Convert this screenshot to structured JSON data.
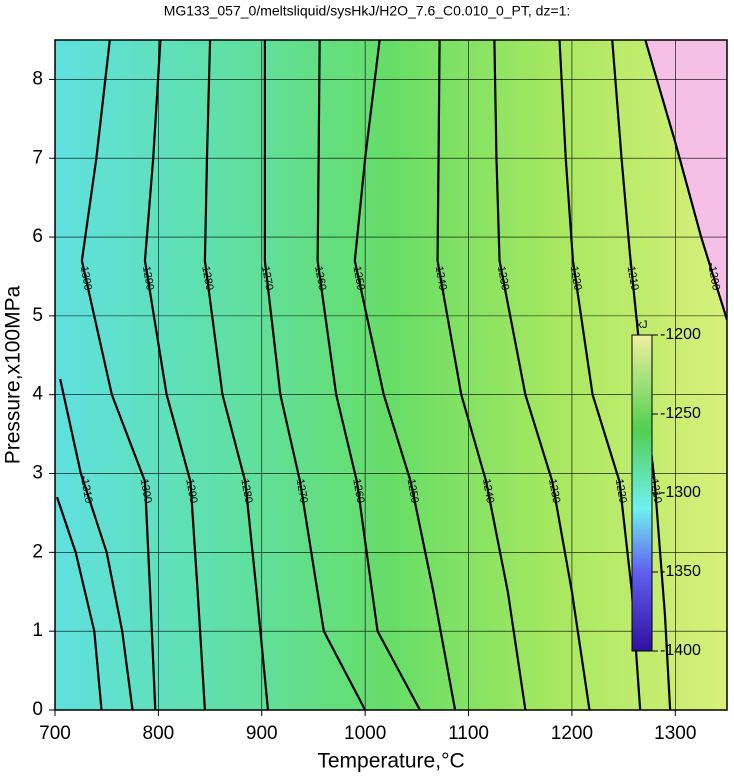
{
  "chart_data": {
    "type": "contour",
    "title": "MG133_057_0/meltsliquid/sysHkJ/H2O_7.6_C0.010_0_PT, dz=1:",
    "x_label": "Temperature,°C",
    "y_label": "Pressure,x100MPa",
    "xlim": [
      700,
      1350
    ],
    "ylim": [
      0,
      8.5
    ],
    "xticks": [
      700,
      800,
      900,
      1000,
      1100,
      1200,
      1300
    ],
    "yticks": [
      0,
      1,
      2,
      3,
      4,
      5,
      6,
      7,
      8
    ],
    "grid": true,
    "high_region_color": "#f6bfe6",
    "contours": [
      {
        "level": -1200,
        "T": [
          1271,
          1300,
          1325,
          1350
        ],
        "P": [
          8.5,
          7.2,
          6.0,
          4.95
        ]
      },
      {
        "level": -1210,
        "T": [
          1239,
          1248,
          1256,
          1270,
          1280,
          1290,
          1295
        ],
        "P": [
          8.5,
          7.0,
          5.8,
          4.0,
          2.9,
          1.2,
          0
        ]
      },
      {
        "level": -1220,
        "T": [
          1188,
          1194,
          1201,
          1220,
          1246,
          1258,
          1266
        ],
        "P": [
          8.5,
          7.0,
          5.7,
          4.0,
          2.9,
          1.5,
          0
        ]
      },
      {
        "level": -1230,
        "T": [
          1125,
          1127,
          1130,
          1155,
          1181,
          1200,
          1217
        ],
        "P": [
          8.5,
          7.0,
          5.7,
          4.0,
          2.9,
          1.5,
          0
        ]
      },
      {
        "level": -1240,
        "T": [
          1072,
          1071,
          1070,
          1093,
          1117,
          1138,
          1155
        ],
        "P": [
          8.5,
          7.0,
          5.7,
          4.0,
          2.9,
          1.5,
          0
        ]
      },
      {
        "level": -1250,
        "T": [
          1014,
          1000,
          990,
          1018,
          1044,
          1066,
          1087
        ],
        "P": [
          8.5,
          7.0,
          5.7,
          4.0,
          2.9,
          1.5,
          0
        ]
      },
      {
        "level": -1260,
        "T": [
          956,
          955,
          954,
          972,
          992,
          1012,
          1053
        ],
        "P": [
          8.5,
          7.0,
          5.7,
          4.0,
          2.9,
          1.0,
          0
        ]
      },
      {
        "level": -1270,
        "T": [
          903,
          903,
          903,
          918,
          937,
          960,
          1000
        ],
        "P": [
          8.5,
          7.0,
          5.7,
          4.0,
          2.9,
          1.0,
          0
        ]
      },
      {
        "level": -1280,
        "T": [
          850,
          847,
          845,
          862,
          884,
          895,
          906
        ],
        "P": [
          8.5,
          7.0,
          5.7,
          4.0,
          2.9,
          1.5,
          0
        ]
      },
      {
        "level": -1290,
        "T": [
          802,
          795,
          787,
          808,
          831,
          838,
          845
        ],
        "P": [
          8.5,
          7.0,
          5.7,
          4.0,
          2.9,
          1.5,
          0
        ]
      },
      {
        "level": -1300,
        "T": [
          753,
          740,
          726,
          755,
          787,
          792,
          797
        ],
        "P": [
          8.5,
          7.0,
          5.7,
          4.0,
          2.9,
          1.5,
          0
        ]
      },
      {
        "level": -1310,
        "T": [
          705,
          725,
          750,
          765,
          775
        ],
        "P": [
          4.2,
          3.0,
          2.0,
          1.0,
          0
        ]
      },
      {
        "level": -1320,
        "T": [
          702,
          720,
          738,
          745
        ],
        "P": [
          2.7,
          2.0,
          1.0,
          0
        ]
      }
    ],
    "colorbar": {
      "label": "kJ",
      "lim": [
        -1400,
        -1200
      ],
      "ticks": [
        -1200,
        -1250,
        -1300,
        -1350,
        -1400
      ]
    }
  }
}
